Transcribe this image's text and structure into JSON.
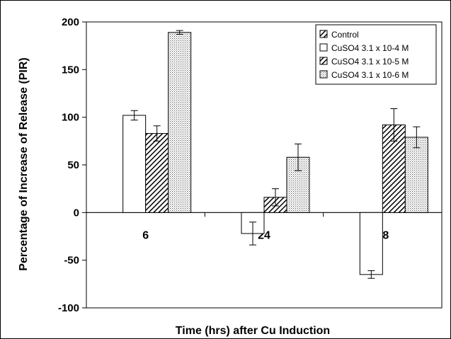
{
  "chart_data": {
    "type": "bar",
    "title": "",
    "xlabel": "Time (hrs) after Cu Induction",
    "ylabel": "Percentage of Increase of Release (PIR)",
    "ylim": [
      -100,
      200
    ],
    "yticks": [
      -100,
      -50,
      0,
      50,
      100,
      150,
      200
    ],
    "categories": [
      "6",
      "24",
      "48"
    ],
    "legend_position": "top-right",
    "grid": false,
    "series": [
      {
        "name": "Control",
        "pattern": "diagonal",
        "values": [
          0,
          0,
          0
        ],
        "errors": [
          0,
          0,
          0
        ]
      },
      {
        "name": "CuSO4 3.1 x 10-4 M",
        "pattern": "white",
        "values": [
          102,
          -22,
          -65
        ],
        "errors": [
          5,
          12,
          4
        ]
      },
      {
        "name": "CuSO4 3.1 x 10-5 M",
        "pattern": "diagonal",
        "values": [
          83,
          16,
          92
        ],
        "errors": [
          8,
          9,
          17
        ]
      },
      {
        "name": "CuSO4 3.1 x 10-6 M",
        "pattern": "dots",
        "values": [
          189,
          58,
          79
        ],
        "errors": [
          2,
          14,
          11
        ]
      }
    ]
  }
}
